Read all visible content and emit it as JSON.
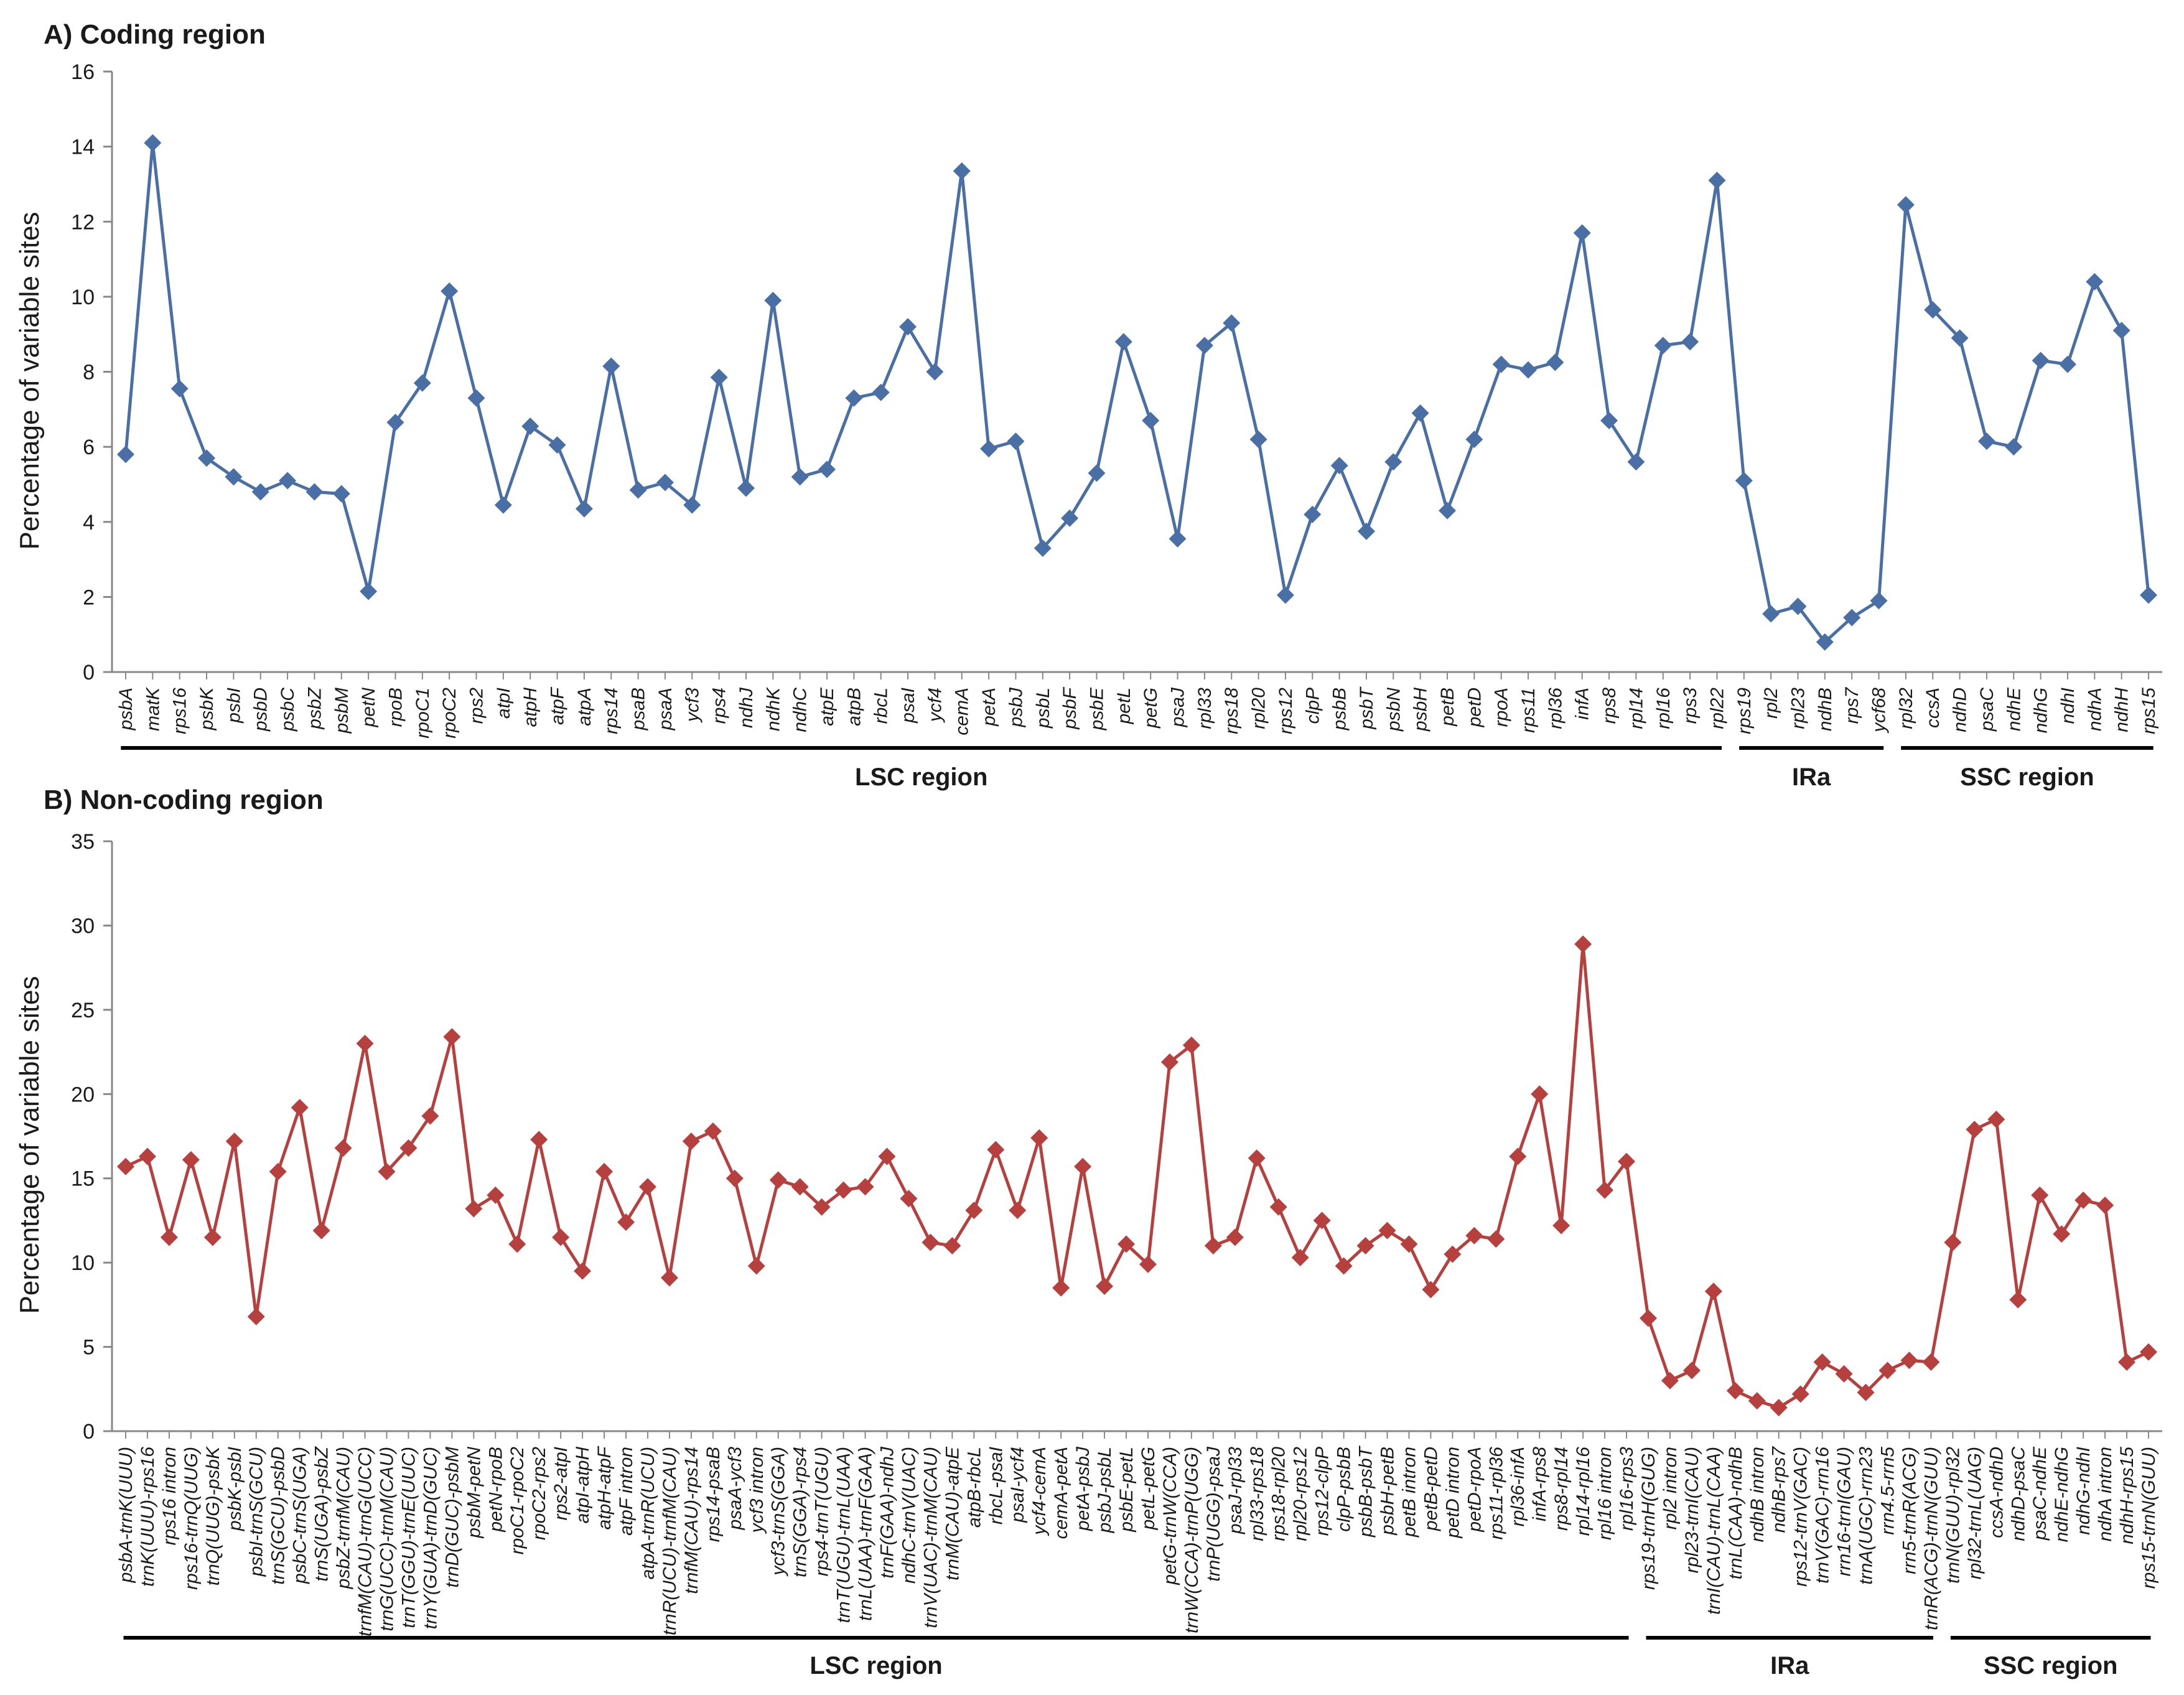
{
  "chart_data": [
    {
      "type": "line",
      "title": "A) Coding region",
      "ylabel": "Percentage of variable sites",
      "ylim": [
        0,
        16
      ],
      "yticks": [
        0,
        2,
        4,
        6,
        8,
        10,
        12,
        14,
        16
      ],
      "grid": false,
      "color": "#4a6fa5",
      "categories": [
        "psbA",
        "matK",
        "rps16",
        "psbK",
        "psbI",
        "psbD",
        "psbC",
        "psbZ",
        "psbM",
        "petN",
        "rpoB",
        "rpoC1",
        "rpoC2",
        "rps2",
        "atpI",
        "atpH",
        "atpF",
        "atpA",
        "rps14",
        "psaB",
        "psaA",
        "ycf3",
        "rps4",
        "ndhJ",
        "ndhK",
        "ndhC",
        "atpE",
        "atpB",
        "rbcL",
        "psaI",
        "ycf4",
        "cemA",
        "petA",
        "psbJ",
        "psbL",
        "psbF",
        "psbE",
        "petL",
        "petG",
        "psaJ",
        "rpl33",
        "rps18",
        "rpl20",
        "rps12",
        "clpP",
        "psbB",
        "psbT",
        "psbN",
        "psbH",
        "petB",
        "petD",
        "rpoA",
        "rps11",
        "rpl36",
        "infA",
        "rps8",
        "rpl14",
        "rpl16",
        "rps3",
        "rpl22",
        "rps19",
        "rpl2",
        "rpl23",
        "ndhB",
        "rps7",
        "ycf68",
        "rpl32",
        "ccsA",
        "ndhD",
        "psaC",
        "ndhE",
        "ndhG",
        "ndhI",
        "ndhA",
        "ndhH",
        "rps15"
      ],
      "values": [
        5.8,
        14.1,
        7.55,
        5.7,
        5.2,
        4.8,
        5.1,
        4.8,
        4.75,
        2.15,
        6.65,
        7.7,
        10.15,
        7.3,
        4.45,
        6.55,
        6.05,
        4.35,
        8.15,
        4.85,
        5.05,
        4.45,
        7.85,
        4.9,
        9.9,
        5.2,
        5.4,
        7.3,
        7.45,
        9.2,
        8.0,
        13.35,
        5.95,
        6.15,
        3.3,
        4.1,
        5.3,
        8.8,
        6.7,
        3.55,
        8.7,
        9.3,
        6.2,
        2.05,
        4.2,
        5.5,
        3.75,
        5.6,
        6.9,
        4.3,
        6.2,
        8.2,
        8.05,
        8.25,
        11.7,
        6.7,
        5.6,
        8.7,
        8.8,
        13.1,
        5.1,
        1.55,
        1.75,
        0.8,
        1.45,
        1.9,
        12.45,
        9.65,
        8.9,
        6.15,
        6.0,
        8.3,
        8.2,
        10.4,
        9.1,
        2.05
      ],
      "regions": [
        {
          "label": "LSC region",
          "start": 0,
          "end": 59
        },
        {
          "label": "IRa",
          "start": 60,
          "end": 65
        },
        {
          "label": "SSC region",
          "start": 66,
          "end": 75
        }
      ]
    },
    {
      "type": "line",
      "title": "B) Non-coding region",
      "ylabel": "Percentage of variable sites",
      "ylim": [
        0,
        35
      ],
      "yticks": [
        0,
        5,
        10,
        15,
        20,
        25,
        30,
        35
      ],
      "grid": false,
      "color": "#b5403e",
      "categories": [
        "psbA-trnK(UUU)",
        "trnK(UUU)-rps16",
        "rps16 intron",
        "rps16-trnQ(UUG)",
        "trnQ(UUG)-psbK",
        "psbK-psbI",
        "psbI-trnS(GCU)",
        "trnS(GCU)-psbD",
        "psbC-trnS(UGA)",
        "trnS(UGA)-psbZ",
        "psbZ-trnfM(CAU)",
        "trnfM(CAU)-trnG(UCC)",
        "trnG(UCC)-trnM(CAU)",
        "trnT(GGU)-trnE(UUC)",
        "trnY(GUA)-trnD(GUC)",
        "trnD(GUC)-psbM",
        "psbM-petN",
        "petN-rpoB",
        "rpoC1-rpoC2",
        "rpoC2-rps2",
        "rps2-atpI",
        "atpI-atpH",
        "atpH-atpF",
        "atpF intron",
        "atpA-trnR(UCU)",
        "trnR(UCU)-trnfM(CAU)",
        "trnfM(CAU)-rps14",
        "rps14-psaB",
        "psaA-ycf3",
        "ycf3 intron",
        "ycf3-trnS(GGA)",
        "trnS(GGA)-rps4",
        "rps4-trnT(UGU)",
        "trnT(UGU)-trnL(UAA)",
        "trnL(UAA)-trnF(GAA)",
        "trnF(GAA)-ndhJ",
        "ndhC-trnV(UAC)",
        "trnV(UAC)-trnM(CAU)",
        "trnM(CAU)-atpE",
        "atpB-rbcL",
        "rbcL-psaI",
        "psaI-ycf4",
        "ycf4-cemA",
        "cemA-petA",
        "petA-psbJ",
        "psbJ-psbL",
        "psbE-petL",
        "petL-petG",
        "petG-trnW(CCA)",
        "trnW(CCA)-trnP(UGG)",
        "trnP(UGG)-psaJ",
        "psaJ-rpl33",
        "rpl33-rps18",
        "rps18-rpl20",
        "rpl20-rps12",
        "rps12-clpP",
        "clpP-psbB",
        "psbB-psbT",
        "psbH-petB",
        "petB intron",
        "petB-petD",
        "petD intron",
        "petD-rpoA",
        "rps11-rpl36",
        "rpl36-infA",
        "infA-rps8",
        "rps8-rpl14",
        "rpl14-rpl16",
        "rpl16 intron",
        "rpl16-rps3",
        "rps19-trnH(GUG)",
        "rpl2 intron",
        "rpl23-trnI(CAU)",
        "trnI(CAU)-trnL(CAA)",
        "trnL(CAA)-ndhB",
        "ndhB intron",
        "ndhB-rps7",
        "rps12-trnV(GAC)",
        "trnV(GAC)-rrn16",
        "rrn16-trnI(GAU)",
        "trnA(UGC)-rrn23",
        "rrn4.5-rrn5",
        "rrn5-trnR(ACG)",
        "trnR(ACG)-trnN(GUU)",
        "trnN(GUU)-rpl32",
        "rpl32-trnL(UAG)",
        "ccsA-ndhD",
        "ndhD-psaC",
        "psaC-ndhE",
        "ndhE-ndhG",
        "ndhG-ndhI",
        "ndhA intron",
        "ndhH-rps15",
        "rps15-trnN(GUU)"
      ],
      "values": [
        15.7,
        16.3,
        11.5,
        16.1,
        11.5,
        17.2,
        6.8,
        15.4,
        19.2,
        11.9,
        16.8,
        23.0,
        15.4,
        16.8,
        18.7,
        23.4,
        13.2,
        14.0,
        11.1,
        17.3,
        11.5,
        9.5,
        15.4,
        12.4,
        14.5,
        9.1,
        17.2,
        17.8,
        15.0,
        9.8,
        14.9,
        14.5,
        13.3,
        14.3,
        14.5,
        16.3,
        13.8,
        11.2,
        11.0,
        13.1,
        16.7,
        13.1,
        17.4,
        8.5,
        15.7,
        8.6,
        11.1,
        9.9,
        21.9,
        22.9,
        11.0,
        11.5,
        16.2,
        13.3,
        10.3,
        12.5,
        9.8,
        11.0,
        11.9,
        11.1,
        8.4,
        10.5,
        11.6,
        11.4,
        16.3,
        20.0,
        12.2,
        28.9,
        14.3,
        16.0,
        6.7,
        3.0,
        3.6,
        8.3,
        2.4,
        1.8,
        1.4,
        2.2,
        4.1,
        3.4,
        2.3,
        3.6,
        4.2,
        4.1,
        11.2,
        17.9,
        18.5,
        7.8,
        14.0,
        11.7,
        13.7,
        13.4,
        4.1,
        4.7
      ],
      "regions": [
        {
          "label": "LSC region",
          "start": 0,
          "end": 69
        },
        {
          "label": "IRa",
          "start": 70,
          "end": 83
        },
        {
          "label": "SSC region",
          "start": 84,
          "end": 93
        }
      ]
    }
  ]
}
